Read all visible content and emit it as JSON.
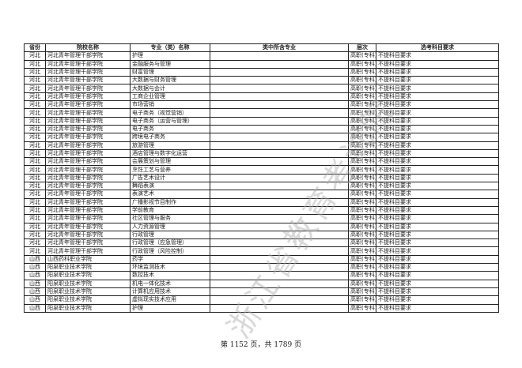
{
  "headers": [
    "省份",
    "院校名称",
    "专业（类）名称",
    "类中所含专业",
    "层次",
    "选考科目要求"
  ],
  "rows": [
    [
      "河北",
      "河北青年管理干部学院",
      "护理",
      "",
      "高职(专科)",
      "不提科目要求"
    ],
    [
      "河北",
      "河北青年管理干部学院",
      "金融服务与管理",
      "",
      "高职(专科)",
      "不提科目要求"
    ],
    [
      "河北",
      "河北青年管理干部学院",
      "财富管理",
      "",
      "高职(专科)",
      "不提科目要求"
    ],
    [
      "河北",
      "河北青年管理干部学院",
      "大数据与财务管理",
      "",
      "高职(专科)",
      "不提科目要求"
    ],
    [
      "河北",
      "河北青年管理干部学院",
      "大数据与会计",
      "",
      "高职(专科)",
      "不提科目要求"
    ],
    [
      "河北",
      "河北青年管理干部学院",
      "工商企业管理",
      "",
      "高职(专科)",
      "不提科目要求"
    ],
    [
      "河北",
      "河北青年管理干部学院",
      "市场营销",
      "",
      "高职(专科)",
      "不提科目要求"
    ],
    [
      "河北",
      "河北青年管理干部学院",
      "电子商务（视觉营销）",
      "",
      "高职(专科)",
      "不提科目要求"
    ],
    [
      "河北",
      "河北青年管理干部学院",
      "电子商务（运营与管理）",
      "",
      "高职(专科)",
      "不提科目要求"
    ],
    [
      "河北",
      "河北青年管理干部学院",
      "电子商务",
      "",
      "高职(专科)",
      "不提科目要求"
    ],
    [
      "河北",
      "河北青年管理干部学院",
      "跨境电子商务",
      "",
      "高职(专科)",
      "不提科目要求"
    ],
    [
      "河北",
      "河北青年管理干部学院",
      "旅游管理",
      "",
      "高职(专科)",
      "不提科目要求"
    ],
    [
      "河北",
      "河北青年管理干部学院",
      "酒店管理与数字化运营",
      "",
      "高职(专科)",
      "不提科目要求"
    ],
    [
      "河北",
      "河北青年管理干部学院",
      "会展策划与管理",
      "",
      "高职(专科)",
      "不提科目要求"
    ],
    [
      "河北",
      "河北青年管理干部学院",
      "烹饪工艺与营养",
      "",
      "高职(专科)",
      "不提科目要求"
    ],
    [
      "河北",
      "河北青年管理干部学院",
      "广告艺术设计",
      "",
      "高职(专科)",
      "不提科目要求"
    ],
    [
      "河北",
      "河北青年管理干部学院",
      "舞蹈表演",
      "",
      "高职(专科)",
      "不提科目要求"
    ],
    [
      "河北",
      "河北青年管理干部学院",
      "表演艺术",
      "",
      "高职(专科)",
      "不提科目要求"
    ],
    [
      "河北",
      "河北青年管理干部学院",
      "广播影视节目制作",
      "",
      "高职(专科)",
      "不提科目要求"
    ],
    [
      "河北",
      "河北青年管理干部学院",
      "学前教育",
      "",
      "高职(专科)",
      "不提科目要求"
    ],
    [
      "河北",
      "河北青年管理干部学院",
      "社区管理与服务",
      "",
      "高职(专科)",
      "不提科目要求"
    ],
    [
      "河北",
      "河北青年管理干部学院",
      "人力资源管理",
      "",
      "高职(专科)",
      "不提科目要求"
    ],
    [
      "河北",
      "河北青年管理干部学院",
      "行政管理",
      "",
      "高职(专科)",
      "不提科目要求"
    ],
    [
      "河北",
      "河北青年管理干部学院",
      "行政管理（应急管理）",
      "",
      "高职(专科)",
      "不提科目要求"
    ],
    [
      "河北",
      "河北青年管理干部学院",
      "行政管理（风险控制）",
      "",
      "高职(专科)",
      "不提科目要求"
    ],
    [
      "山西",
      "山西药科职业学院",
      "药学",
      "",
      "高职(专科)",
      "不提科目要求"
    ],
    [
      "山西",
      "阳泉职业技术学院",
      "环境监测技术",
      "",
      "高职(专科)",
      "不提科目要求"
    ],
    [
      "山西",
      "阳泉职业技术学院",
      "数控技术",
      "",
      "高职(专科)",
      "不提科目要求"
    ],
    [
      "山西",
      "阳泉职业技术学院",
      "机电一体化技术",
      "",
      "高职(专科)",
      "不提科目要求"
    ],
    [
      "山西",
      "阳泉职业技术学院",
      "计算机应用技术",
      "",
      "高职(专科)",
      "不提科目要求"
    ],
    [
      "山西",
      "阳泉职业技术学院",
      "虚拟现实技术应用",
      "",
      "高职(专科)",
      "不提科目要求"
    ],
    [
      "山西",
      "阳泉职业技术学院",
      "护理",
      "",
      "高职(专科)",
      "不提科目要求"
    ]
  ],
  "watermark": "浙江省教育考试院",
  "footer": "第 1152 页，共 1789 页"
}
